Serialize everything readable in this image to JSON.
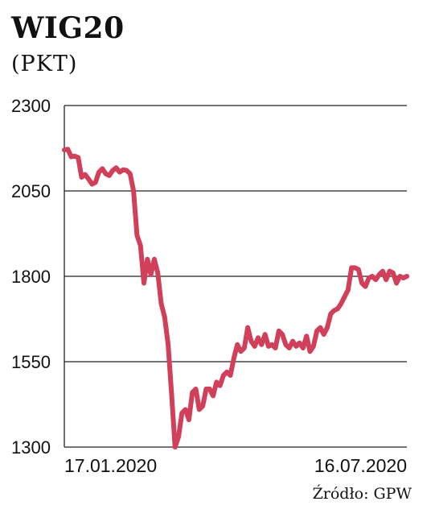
{
  "header": {
    "title": "WIG20",
    "unit": "(PKT)"
  },
  "footer": {
    "source": "Źródło: GPW"
  },
  "colors": {
    "line": "#d1405a",
    "grid": "#222222",
    "text": "#111111"
  },
  "chart_data": {
    "type": "line",
    "title": "WIG20",
    "ylabel": "(PKT)",
    "ylim": [
      1300,
      2300
    ],
    "yticks": [
      2300,
      2050,
      1800,
      1550,
      1300
    ],
    "x_start_label": "17.01.2020",
    "x_end_label": "16.07.2020",
    "grid": true,
    "series": [
      {
        "values": [
          2170,
          2172,
          2150,
          2152,
          2148,
          2090,
          2098,
          2085,
          2070,
          2075,
          2105,
          2115,
          2100,
          2095,
          2110,
          2118,
          2105,
          2112,
          2110,
          2100,
          2050,
          1920,
          1890,
          1780,
          1850,
          1805,
          1850,
          1810,
          1720,
          1680,
          1600,
          1455,
          1300,
          1330,
          1400,
          1410,
          1380,
          1460,
          1470,
          1410,
          1420,
          1470,
          1470,
          1450,
          1490,
          1480,
          1510,
          1520,
          1510,
          1560,
          1600,
          1580,
          1590,
          1650,
          1610,
          1595,
          1620,
          1600,
          1630,
          1595,
          1600,
          1590,
          1640,
          1630,
          1600,
          1590,
          1610,
          1595,
          1605,
          1590,
          1625,
          1580,
          1595,
          1640,
          1650,
          1630,
          1650,
          1690,
          1700,
          1705,
          1720,
          1740,
          1760,
          1825,
          1825,
          1820,
          1780,
          1770,
          1795,
          1800,
          1790,
          1805,
          1815,
          1790,
          1815,
          1810,
          1780,
          1800,
          1795,
          1800
        ]
      }
    ]
  }
}
